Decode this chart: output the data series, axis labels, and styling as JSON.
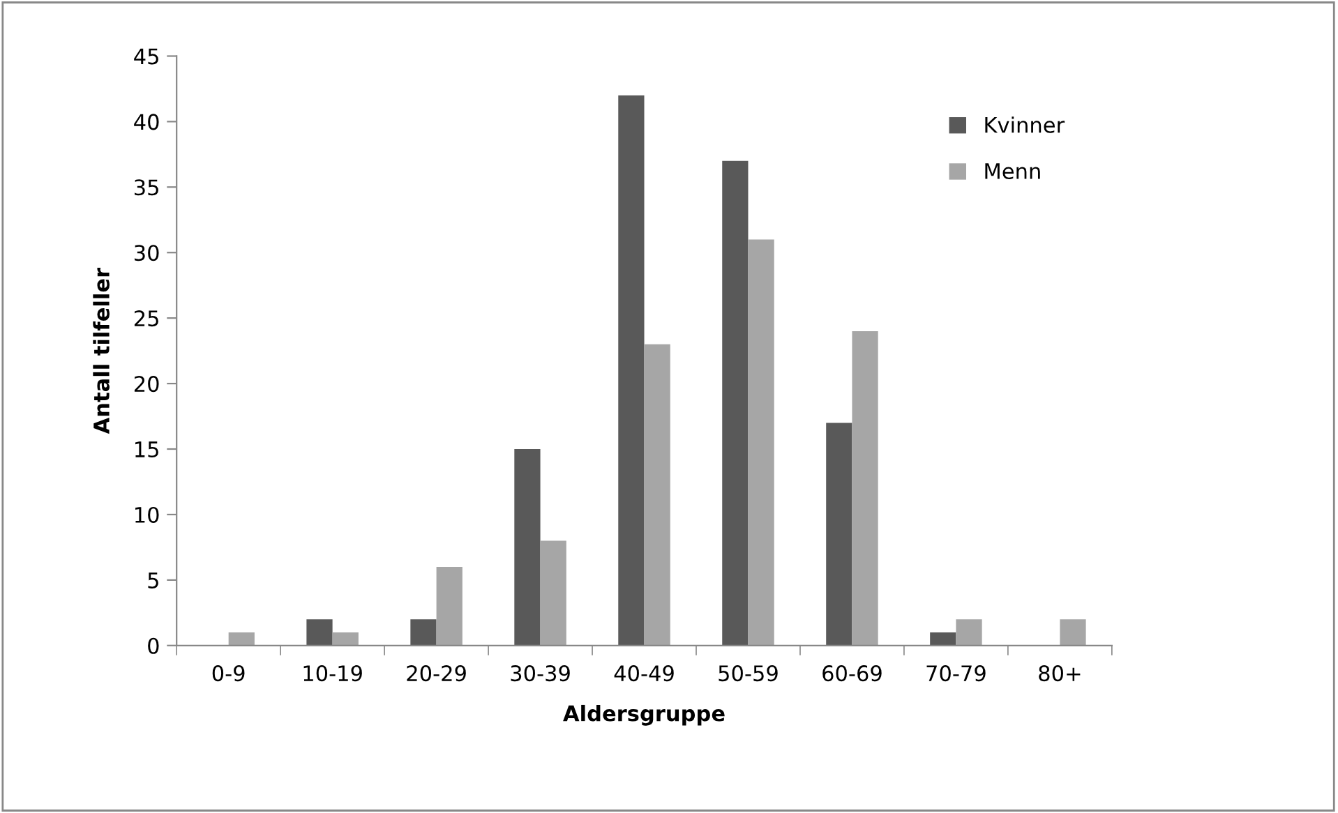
{
  "chart_data": {
    "type": "bar",
    "xlabel": "Aldersgruppe",
    "ylabel": "Antall tilfeller",
    "categories": [
      "0-9",
      "10-19",
      "20-29",
      "30-39",
      "40-49",
      "50-59",
      "60-69",
      "70-79",
      "80+"
    ],
    "series": [
      {
        "name": "Kvinner",
        "color": "#595959",
        "values": [
          0,
          2,
          2,
          15,
          42,
          37,
          17,
          1,
          0
        ]
      },
      {
        "name": "Menn",
        "color": "#a6a6a6",
        "values": [
          1,
          1,
          6,
          8,
          23,
          31,
          24,
          2,
          2
        ]
      }
    ],
    "ylim": [
      0,
      45
    ],
    "yticks": [
      0,
      5,
      10,
      15,
      20,
      25,
      30,
      35,
      40,
      45
    ],
    "grid": false,
    "legend": "top right"
  }
}
